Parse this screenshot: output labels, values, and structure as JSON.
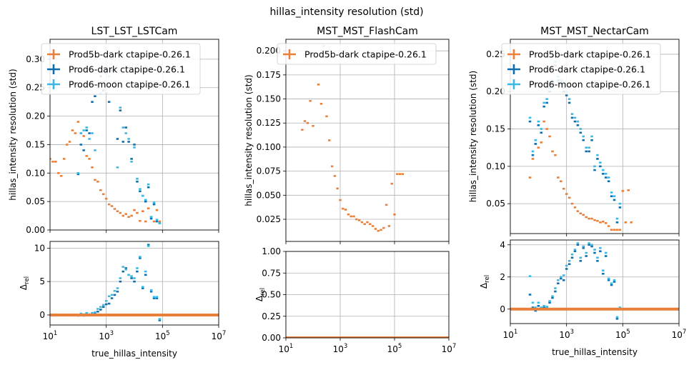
{
  "figure": {
    "suptitle": "hillas_intensity resolution (std)"
  },
  "colors": {
    "Prod5b-dark ctapipe-0.26.1": "#e8803b",
    "Prod6-dark ctapipe-0.26.1": "#0d6fae",
    "Prod6-moon ctapipe-0.26.1": "#3cb8e4",
    "grid": "#b0b0b0"
  },
  "chart_data": [
    {
      "id": "lst-main",
      "type": "scatter",
      "title": "LST_LST_LSTCam",
      "xlabel": "",
      "ylabel": "hillas_intensity resolution (std)",
      "xscale": "log",
      "xlim": [
        10,
        10000000
      ],
      "ylim": [
        0,
        0.335
      ],
      "yticks": [
        "0.00",
        "0.05",
        "0.10",
        "0.15",
        "0.20",
        "0.25",
        "0.30"
      ],
      "ytick_values": [
        0,
        0.05,
        0.1,
        0.15,
        0.2,
        0.25,
        0.3
      ],
      "xticks": [],
      "grid": true,
      "legend": "top-left",
      "series": [
        {
          "name": "Prod5b-dark ctapipe-0.26.1",
          "x": [
            6.3,
            8,
            10,
            12.6,
            15.8,
            20,
            25,
            31.6,
            40,
            50,
            63,
            79,
            100,
            126,
            158,
            200,
            251,
            316,
            398,
            501,
            631,
            794,
            1000,
            1259,
            1585,
            1995,
            2512,
            3162,
            3981,
            5012,
            6310,
            7943,
            10000,
            12589,
            15849,
            19953,
            25119,
            31623,
            39811,
            50119,
            63096,
            79433
          ],
          "y": [
            0.14,
            0.135,
            0.125,
            0.12,
            0.12,
            0.1,
            0.095,
            0.125,
            0.15,
            0.155,
            0.175,
            0.17,
            0.19,
            0.17,
            0.165,
            0.13,
            0.125,
            0.11,
            0.088,
            0.085,
            0.07,
            0.063,
            0.055,
            0.045,
            0.042,
            0.037,
            0.033,
            0.03,
            0.025,
            0.028,
            0.023,
            0.025,
            0.035,
            0.03,
            0.016,
            0.033,
            0.015,
            0.038,
            0.023,
            0.015,
            0.035,
            0.015
          ]
        },
        {
          "name": "Prod6-dark ctapipe-0.26.1",
          "x": [
            100,
            126,
            158,
            200,
            251,
            316,
            398,
            501,
            631,
            794,
            1000,
            1259,
            1585,
            1995,
            2512,
            3162,
            3981,
            5012,
            6310,
            7943,
            10000,
            12589,
            15849,
            19953,
            25119,
            31623,
            39811,
            50119,
            63096,
            79433
          ],
          "y": [
            0.098,
            0.15,
            0.14,
            0.175,
            0.17,
            0.225,
            0.235,
            0.255,
            0.27,
            0.245,
            0.24,
            0.225,
            0.28,
            0.26,
            0.16,
            0.21,
            0.155,
            0.18,
            0.155,
            0.125,
            0.15,
            0.085,
            0.068,
            0.06,
            0.05,
            0.075,
            0.02,
            0.045,
            0.015,
            0.012
          ]
        },
        {
          "name": "Prod6-moon ctapipe-0.26.1",
          "x": [
            100,
            126,
            158,
            200,
            251,
            316,
            398,
            501,
            631,
            794,
            1000,
            1259,
            1585,
            1995,
            2512,
            3162,
            3981,
            5012,
            6310,
            7943,
            10000,
            12589,
            15849,
            19953,
            25119,
            31623,
            39811,
            50119,
            63096,
            79433
          ],
          "y": [
            0.1,
            0.17,
            0.175,
            0.18,
            0.16,
            0.17,
            0.14,
            0.25,
            0.24,
            0.26,
            0.275,
            0.27,
            0.3,
            0.285,
            0.11,
            0.215,
            0.18,
            0.17,
            0.16,
            0.12,
            0.145,
            0.09,
            0.072,
            0.06,
            0.053,
            0.08,
            0.023,
            0.048,
            0.018,
            0.012
          ]
        }
      ]
    },
    {
      "id": "lst-rel",
      "type": "scatter",
      "title": "",
      "xlabel": "true_hillas_intensity",
      "ylabel": "Δrel",
      "xscale": "log",
      "xlim": [
        10,
        10000000
      ],
      "ylim": [
        -1.5,
        11
      ],
      "yticks": [
        "0",
        "5",
        "10"
      ],
      "ytick_values": [
        0,
        5,
        10
      ],
      "xticks": [
        "10^1",
        "10^3",
        "10^5",
        "10^7"
      ],
      "xtick_values": [
        10,
        1000,
        100000,
        10000000
      ],
      "grid": true,
      "baseline": 0,
      "series": [
        {
          "name": "Prod6-dark ctapipe-0.26.1",
          "x": [
            100,
            126,
            158,
            200,
            251,
            316,
            398,
            501,
            631,
            794,
            1000,
            1259,
            1585,
            1995,
            2512,
            3162,
            3981,
            5012,
            6310,
            7943,
            10000,
            12589,
            15849,
            19953,
            25119,
            31623,
            39811,
            50119,
            63096,
            79433
          ],
          "y": [
            -0.1,
            0.05,
            -0.1,
            0.1,
            -0.05,
            0.1,
            0.2,
            0.5,
            0.8,
            1.2,
            1.6,
            1.7,
            2.5,
            3.0,
            3.5,
            5.0,
            6.5,
            7.0,
            6.0,
            5.5,
            5.0,
            6.5,
            8.5,
            4.0,
            6.0,
            10.5,
            3.5,
            2.5,
            2.5,
            -0.8
          ]
        },
        {
          "name": "Prod6-moon ctapipe-0.26.1",
          "x": [
            100,
            126,
            158,
            200,
            251,
            316,
            398,
            501,
            631,
            794,
            1000,
            1259,
            1585,
            1995,
            2512,
            3162,
            3981,
            5012,
            6310,
            7943,
            10000,
            12589,
            15849,
            19953,
            25119,
            31623,
            39811,
            50119,
            63096,
            79433
          ],
          "y": [
            0.0,
            0.2,
            0.1,
            0.3,
            0.1,
            0.3,
            0.4,
            0.9,
            1.2,
            1.5,
            2.1,
            2.8,
            3.0,
            3.6,
            4.0,
            5.5,
            7.2,
            6.8,
            6.0,
            5.8,
            5.5,
            7.0,
            8.7,
            4.2,
            6.5,
            10.3,
            3.7,
            2.7,
            2.7,
            -0.6
          ]
        },
        {
          "name": "Prod5b-dark ctapipe-0.26.1",
          "x": [
            10,
            10000000
          ],
          "y": [
            0,
            0
          ],
          "line": true
        }
      ]
    },
    {
      "id": "mst-flash-main",
      "type": "scatter",
      "title": "MST_MST_FlashCam",
      "xlabel": "",
      "ylabel": "hillas_intensity resolution (std)",
      "xscale": "log",
      "xlim": [
        10,
        10000000
      ],
      "ylim": [
        0.002,
        0.212
      ],
      "yticks": [
        "0.025",
        "0.050",
        "0.075",
        "0.100",
        "0.125",
        "0.150",
        "0.175",
        "0.200"
      ],
      "ytick_values": [
        0.025,
        0.05,
        0.075,
        0.1,
        0.125,
        0.15,
        0.175,
        0.2
      ],
      "xticks": [],
      "grid": true,
      "legend": "top-left",
      "series": [
        {
          "name": "Prod5b-dark ctapipe-0.26.1",
          "x": [
            40,
            50,
            63,
            79,
            100,
            126,
            158,
            200,
            251,
            316,
            398,
            501,
            631,
            794,
            1000,
            1259,
            1585,
            1995,
            2512,
            3162,
            3981,
            5012,
            6310,
            7943,
            10000,
            12589,
            15849,
            19953,
            25119,
            31623,
            39811,
            50119,
            63096,
            79433,
            100000,
            125893,
            158489,
            199526
          ],
          "y": [
            0.118,
            0.127,
            0.125,
            0.148,
            0.122,
            0.197,
            0.165,
            0.145,
            0.205,
            0.132,
            0.107,
            0.08,
            0.07,
            0.057,
            0.045,
            0.036,
            0.035,
            0.03,
            0.028,
            0.028,
            0.025,
            0.024,
            0.022,
            0.02,
            0.022,
            0.02,
            0.018,
            0.015,
            0.013,
            0.014,
            0.016,
            0.04,
            0.018,
            0.062,
            0.03,
            0.072,
            0.072,
            0.072
          ]
        }
      ]
    },
    {
      "id": "mst-flash-rel",
      "type": "scatter",
      "title": "",
      "xlabel": "",
      "ylabel": "Δrel",
      "xscale": "log",
      "xlim": [
        10,
        10000000
      ],
      "ylim": [
        0,
        1
      ],
      "yticks": [
        "0.00",
        "0.25",
        "0.50",
        "0.75",
        "1.00"
      ],
      "ytick_values": [
        0,
        0.25,
        0.5,
        0.75,
        1
      ],
      "xticks": [
        "10^1",
        "10^3",
        "10^5",
        "10^7"
      ],
      "xtick_values": [
        10,
        1000,
        100000,
        10000000
      ],
      "grid": true,
      "baseline": 0,
      "series": [
        {
          "name": "Prod5b-dark ctapipe-0.26.1",
          "x": [
            10,
            10000000
          ],
          "y": [
            0,
            0
          ],
          "line": true
        }
      ]
    },
    {
      "id": "mst-nectar-main",
      "type": "scatter",
      "title": "MST_MST_NectarCam",
      "xlabel": "",
      "ylabel": "hillas_intensity resolution (std)",
      "xscale": "log",
      "xlim": [
        10,
        10000000
      ],
      "ylim": [
        0.01,
        0.27
      ],
      "yticks": [
        "0.05",
        "0.10",
        "0.15",
        "0.20",
        "0.25"
      ],
      "ytick_values": [
        0.05,
        0.1,
        0.15,
        0.2,
        0.25
      ],
      "xticks": [],
      "grid": true,
      "legend": "top-left",
      "series": [
        {
          "name": "Prod5b-dark ctapipe-0.26.1",
          "x": [
            50,
            63,
            79,
            100,
            126,
            158,
            200,
            251,
            316,
            398,
            501,
            631,
            794,
            1000,
            1259,
            1585,
            1995,
            2512,
            3162,
            3981,
            5012,
            6310,
            7943,
            10000,
            12589,
            15849,
            19953,
            25119,
            31623,
            39811,
            50119,
            63096,
            79433,
            100000,
            125893,
            158489,
            199526
          ],
          "y": [
            0.085,
            0.11,
            0.13,
            0.125,
            0.132,
            0.16,
            0.15,
            0.14,
            0.12,
            0.115,
            0.085,
            0.08,
            0.07,
            0.063,
            0.058,
            0.05,
            0.045,
            0.04,
            0.037,
            0.035,
            0.032,
            0.03,
            0.03,
            0.028,
            0.027,
            0.025,
            0.026,
            0.024,
            0.02,
            0.015,
            0.015,
            0.015,
            0.015,
            0.067,
            0.025,
            0.068,
            0.025
          ]
        },
        {
          "name": "Prod6-dark ctapipe-0.26.1",
          "x": [
            50,
            63,
            79,
            100,
            126,
            158,
            200,
            251,
            316,
            398,
            501,
            631,
            794,
            1000,
            1259,
            1585,
            1995,
            2512,
            3162,
            3981,
            5012,
            6310,
            7943,
            10000,
            12589,
            15849,
            19953,
            25119,
            31623,
            39811,
            50119,
            63096,
            79433
          ],
          "y": [
            0.16,
            0.115,
            0.13,
            0.155,
            0.145,
            0.18,
            0.185,
            0.2,
            0.21,
            0.235,
            0.215,
            0.21,
            0.2,
            0.195,
            0.185,
            0.165,
            0.16,
            0.155,
            0.145,
            0.135,
            0.12,
            0.12,
            0.135,
            0.095,
            0.11,
            0.1,
            0.09,
            0.085,
            0.08,
            0.06,
            0.055,
            0.025,
            0.045
          ]
        },
        {
          "name": "Prod6-moon ctapipe-0.26.1",
          "x": [
            50,
            63,
            79,
            100,
            126,
            158,
            200,
            251,
            316,
            398,
            501,
            631,
            794,
            1000,
            1259,
            1585,
            1995,
            2512,
            3162,
            3981,
            5012,
            6310,
            7943,
            10000,
            12589,
            15849,
            19953,
            25119,
            31623,
            39811,
            50119,
            63096,
            79433
          ],
          "y": [
            0.165,
            0.12,
            0.135,
            0.16,
            0.15,
            0.185,
            0.19,
            0.205,
            0.215,
            0.24,
            0.22,
            0.215,
            0.205,
            0.2,
            0.19,
            0.17,
            0.165,
            0.16,
            0.15,
            0.14,
            0.125,
            0.125,
            0.14,
            0.1,
            0.115,
            0.105,
            0.095,
            0.09,
            0.085,
            0.065,
            0.06,
            0.03,
            0.05
          ]
        }
      ]
    },
    {
      "id": "mst-nectar-rel",
      "type": "scatter",
      "title": "",
      "xlabel": "true_hillas_intensity",
      "ylabel": "Δrel",
      "xscale": "log",
      "xlim": [
        10,
        10000000
      ],
      "ylim": [
        -0.9,
        4.3
      ],
      "yticks": [
        "0",
        "2",
        "4"
      ],
      "ytick_values": [
        0,
        2,
        4
      ],
      "xticks": [
        "10^1",
        "10^3",
        "10^5",
        "10^7"
      ],
      "xtick_values": [
        10,
        1000,
        100000,
        10000000
      ],
      "grid": true,
      "baseline": 0,
      "series": [
        {
          "name": "Prod6-dark ctapipe-0.26.1",
          "x": [
            50,
            63,
            79,
            100,
            126,
            158,
            200,
            251,
            316,
            398,
            501,
            631,
            794,
            1000,
            1259,
            1585,
            1995,
            2512,
            3162,
            3981,
            5012,
            6310,
            7943,
            10000,
            12589,
            15849,
            19953,
            25119,
            31623,
            39811,
            50119,
            63096,
            79433
          ],
          "y": [
            0.9,
            0.1,
            -0.1,
            0.2,
            0.0,
            0.1,
            0.05,
            0.4,
            0.7,
            1.1,
            1.6,
            1.9,
            1.8,
            2.5,
            2.8,
            3.2,
            3.6,
            4.0,
            3.0,
            3.8,
            3.3,
            4.0,
            3.9,
            3.5,
            3.0,
            3.6,
            2.2,
            3.3,
            1.8,
            1.5,
            1.7,
            -0.6,
            0.0
          ]
        },
        {
          "name": "Prod6-moon ctapipe-0.26.1",
          "x": [
            50,
            63,
            79,
            100,
            126,
            158,
            200,
            251,
            316,
            398,
            501,
            631,
            794,
            1000,
            1259,
            1585,
            1995,
            2512,
            3162,
            3981,
            5012,
            6310,
            7943,
            10000,
            12589,
            15849,
            19953,
            25119,
            31623,
            39811,
            50119,
            63096,
            79433
          ],
          "y": [
            2.05,
            0.4,
            0.1,
            0.4,
            0.1,
            0.2,
            0.15,
            0.5,
            0.8,
            1.3,
            1.8,
            2.0,
            2.1,
            2.7,
            3.0,
            3.4,
            3.7,
            4.1,
            3.2,
            3.9,
            3.5,
            4.1,
            4.0,
            3.7,
            3.2,
            3.8,
            2.4,
            3.5,
            1.9,
            1.6,
            1.8,
            -0.5,
            0.1
          ]
        },
        {
          "name": "Prod5b-dark ctapipe-0.26.1",
          "x": [
            10,
            10000000
          ],
          "y": [
            0,
            0
          ],
          "line": true
        }
      ]
    }
  ]
}
